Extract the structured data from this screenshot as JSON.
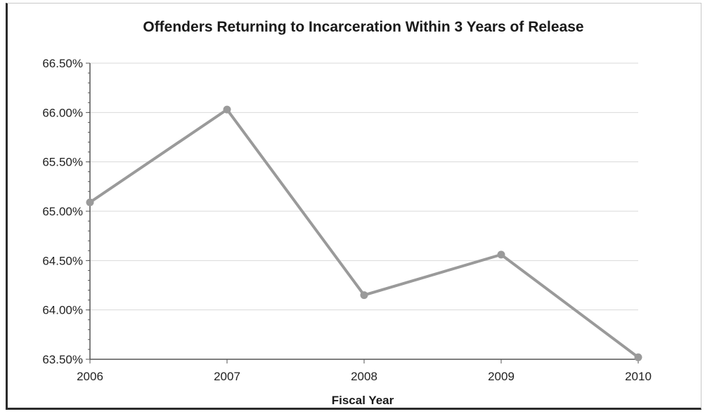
{
  "chart_data": {
    "type": "line",
    "title": "Offenders Returning to Incarceration Within 3 Years of Release",
    "xlabel": "Fiscal Year",
    "ylabel": "",
    "categories": [
      "2006",
      "2007",
      "2008",
      "2009",
      "2010"
    ],
    "series": [
      {
        "values": [
          65.09,
          66.03,
          64.15,
          64.56,
          63.52
        ]
      }
    ],
    "ylim": [
      63.5,
      66.5
    ],
    "yticks": [
      63.5,
      64.0,
      64.5,
      65.0,
      65.5,
      66.0,
      66.5
    ],
    "ytick_labels": [
      "63.50%",
      "64.00%",
      "64.50%",
      "65.00%",
      "65.50%",
      "66.00%",
      "66.50%"
    ],
    "grid": true,
    "legend": "none",
    "colors": {
      "line": "#9a9a9a",
      "marker": "#9a9a9a",
      "grid": "#d9d9d9",
      "axis": "#555555"
    }
  }
}
